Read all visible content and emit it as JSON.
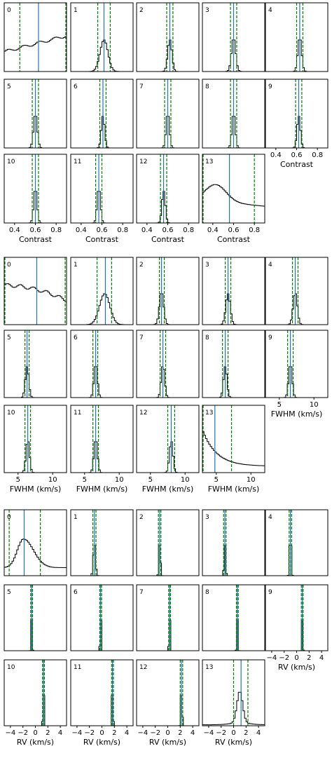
{
  "colors": {
    "hist": "#000000",
    "median": "#1f77b4",
    "interval": "#008000",
    "frame": "#000000"
  },
  "chart_data": [
    {
      "type": "histogram-grid",
      "xlabel": "Contrast",
      "xlim": [
        0.3,
        0.9
      ],
      "xticks": [
        0.4,
        0.6,
        0.8
      ],
      "xtick_labels": [
        "0.4",
        "0.6",
        "0.8"
      ],
      "panels": [
        {
          "label": "0",
          "median": 0.63,
          "lo": 0.45,
          "hi": 0.9,
          "shape": "rise",
          "fd": 0.55
        },
        {
          "label": "1",
          "median": 0.62,
          "lo": 0.56,
          "hi": 0.68,
          "center": 0.62,
          "sigma": 0.038,
          "fd": 0.5
        },
        {
          "label": "2",
          "median": 0.62,
          "lo": 0.59,
          "hi": 0.65,
          "center": 0.62,
          "sigma": 0.02,
          "fd": 0.5
        },
        {
          "label": "3",
          "median": 0.6,
          "lo": 0.57,
          "hi": 0.63,
          "center": 0.6,
          "sigma": 0.02,
          "fd": 0.5
        },
        {
          "label": "4",
          "median": 0.63,
          "lo": 0.6,
          "hi": 0.66,
          "center": 0.63,
          "sigma": 0.018,
          "fd": 0.5
        },
        {
          "label": "5",
          "median": 0.6,
          "lo": 0.57,
          "hi": 0.63,
          "center": 0.6,
          "sigma": 0.018,
          "fd": 0.5
        },
        {
          "label": "6",
          "median": 0.61,
          "lo": 0.58,
          "hi": 0.64,
          "center": 0.61,
          "sigma": 0.016,
          "fd": 0.5
        },
        {
          "label": "7",
          "median": 0.6,
          "lo": 0.57,
          "hi": 0.63,
          "center": 0.6,
          "sigma": 0.016,
          "fd": 0.5
        },
        {
          "label": "8",
          "median": 0.6,
          "lo": 0.57,
          "hi": 0.63,
          "center": 0.6,
          "sigma": 0.016,
          "fd": 0.5
        },
        {
          "label": "9",
          "median": 0.62,
          "lo": 0.59,
          "hi": 0.65,
          "center": 0.62,
          "sigma": 0.016,
          "fd": 0.5
        },
        {
          "label": "10",
          "median": 0.6,
          "lo": 0.57,
          "hi": 0.63,
          "center": 0.6,
          "sigma": 0.016,
          "fd": 0.5
        },
        {
          "label": "11",
          "median": 0.57,
          "lo": 0.54,
          "hi": 0.6,
          "center": 0.57,
          "sigma": 0.016,
          "fd": 0.5
        },
        {
          "label": "12",
          "median": 0.56,
          "lo": 0.53,
          "hi": 0.59,
          "center": 0.56,
          "sigma": 0.016,
          "fd": 0.5
        },
        {
          "label": "13",
          "median": 0.56,
          "lo": 0.3,
          "hi": 0.8,
          "shape": "broad",
          "peak": 0.43,
          "fd": 0.6
        }
      ]
    },
    {
      "type": "histogram-grid",
      "xlabel": "FWHM (km/s)",
      "xlim": [
        3,
        12
      ],
      "xticks": [
        5,
        10
      ],
      "xtick_labels": [
        "5",
        "10"
      ],
      "panels": [
        {
          "label": "0",
          "median": 7.7,
          "lo": 3,
          "hi": 11.8,
          "shape": "plateau",
          "fd": 0.65
        },
        {
          "label": "1",
          "median": 8.0,
          "lo": 6.8,
          "hi": 8.9,
          "center": 7.9,
          "sigma": 0.75,
          "fd": 0.5
        },
        {
          "label": "2",
          "median": 6.6,
          "lo": 6.3,
          "hi": 7.0,
          "center": 6.6,
          "sigma": 0.3,
          "fd": 0.5
        },
        {
          "label": "3",
          "median": 6.7,
          "lo": 6.3,
          "hi": 7.1,
          "center": 6.7,
          "sigma": 0.32,
          "fd": 0.5
        },
        {
          "label": "4",
          "median": 7.3,
          "lo": 6.9,
          "hi": 7.7,
          "center": 7.3,
          "sigma": 0.3,
          "fd": 0.5
        },
        {
          "label": "5",
          "median": 6.3,
          "lo": 6.0,
          "hi": 6.6,
          "center": 6.3,
          "sigma": 0.25,
          "fd": 0.5
        },
        {
          "label": "6",
          "median": 6.6,
          "lo": 6.2,
          "hi": 6.9,
          "center": 6.6,
          "sigma": 0.25,
          "fd": 0.5
        },
        {
          "label": "7",
          "median": 6.8,
          "lo": 6.4,
          "hi": 7.2,
          "center": 6.8,
          "sigma": 0.25,
          "fd": 0.5
        },
        {
          "label": "8",
          "median": 6.3,
          "lo": 5.9,
          "hi": 6.7,
          "center": 6.3,
          "sigma": 0.25,
          "fd": 0.5
        },
        {
          "label": "9",
          "median": 6.6,
          "lo": 6.2,
          "hi": 7.0,
          "center": 6.6,
          "sigma": 0.25,
          "fd": 0.5
        },
        {
          "label": "10",
          "median": 6.4,
          "lo": 6.0,
          "hi": 6.8,
          "center": 6.4,
          "sigma": 0.25,
          "fd": 0.5
        },
        {
          "label": "11",
          "median": 6.6,
          "lo": 6.2,
          "hi": 7.0,
          "center": 6.6,
          "sigma": 0.25,
          "fd": 0.5
        },
        {
          "label": "12",
          "median": 8.0,
          "lo": 7.5,
          "hi": 8.5,
          "center": 8.0,
          "sigma": 0.25,
          "fd": 0.5
        },
        {
          "label": "13",
          "median": 4.8,
          "lo": 3,
          "hi": 7.2,
          "shape": "decay",
          "fd": 0.65
        }
      ]
    },
    {
      "type": "histogram-grid",
      "xlabel": "RV (km/s)",
      "xlim": [
        -5,
        5
      ],
      "xticks": [
        -4,
        -2,
        0,
        2,
        4
      ],
      "xtick_labels": [
        "−4",
        "−2",
        "0",
        "2",
        "4"
      ],
      "panels": [
        {
          "label": "0",
          "median": -1.8,
          "lo": -4.2,
          "hi": 0.8,
          "shape": "skew",
          "center": -1.9,
          "fd": 0.6
        },
        {
          "label": "1",
          "median": -1.2,
          "lo": -1.45,
          "hi": -0.95,
          "center": -1.2,
          "sigma": 0.18,
          "fd": 0.5
        },
        {
          "label": "2",
          "median": -1.3,
          "lo": -1.5,
          "hi": -1.1,
          "center": -1.3,
          "sigma": 0.12,
          "fd": 0.5
        },
        {
          "label": "3",
          "median": -1.4,
          "lo": -1.6,
          "hi": -1.2,
          "center": -1.4,
          "sigma": 0.12,
          "fd": 0.5
        },
        {
          "label": "4",
          "median": -1.0,
          "lo": -1.2,
          "hi": -0.8,
          "center": -1.0,
          "sigma": 0.12,
          "fd": 0.5
        },
        {
          "label": "5",
          "median": -0.6,
          "lo": -0.75,
          "hi": -0.45,
          "center": -0.6,
          "sigma": 0.08,
          "fd": 0.5
        },
        {
          "label": "6",
          "median": -0.2,
          "lo": -0.35,
          "hi": -0.05,
          "center": -0.2,
          "sigma": 0.08,
          "fd": 0.5
        },
        {
          "label": "7",
          "median": 0.3,
          "lo": 0.15,
          "hi": 0.45,
          "center": 0.3,
          "sigma": 0.08,
          "fd": 0.5
        },
        {
          "label": "8",
          "median": 0.6,
          "lo": 0.45,
          "hi": 0.75,
          "center": 0.6,
          "sigma": 0.08,
          "fd": 0.5
        },
        {
          "label": "9",
          "median": 0.9,
          "lo": 0.75,
          "hi": 1.05,
          "center": 0.9,
          "sigma": 0.08,
          "fd": 0.5
        },
        {
          "label": "10",
          "median": 1.3,
          "lo": 1.15,
          "hi": 1.45,
          "center": 1.3,
          "sigma": 0.08,
          "fd": 0.5
        },
        {
          "label": "11",
          "median": 1.7,
          "lo": 1.55,
          "hi": 1.85,
          "center": 1.7,
          "sigma": 0.08,
          "fd": 0.5
        },
        {
          "label": "12",
          "median": 2.2,
          "lo": 2.0,
          "hi": 2.4,
          "center": 2.2,
          "sigma": 0.1,
          "fd": 0.5
        },
        {
          "label": "13",
          "median": 1.2,
          "lo": 0.0,
          "hi": 2.3,
          "shape": "peakwide",
          "center": 1.0,
          "sigma": 0.45,
          "fd": 0.55
        }
      ]
    }
  ]
}
